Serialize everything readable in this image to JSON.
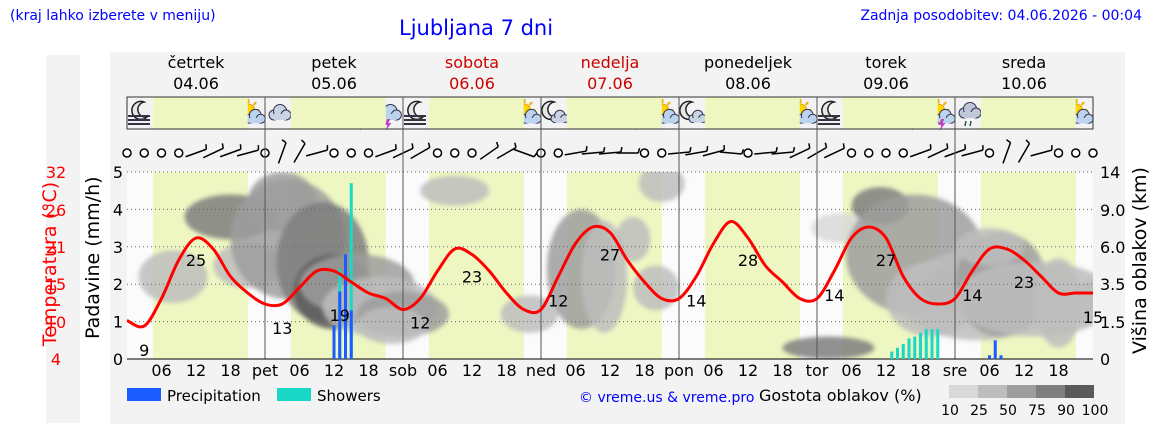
{
  "header": {
    "note": "(kraj lahko izberete v meniju)",
    "title": "Ljubljana 7 dni",
    "updated": "Zadnja posodobitev: 04.06.2026 - 00:04"
  },
  "days": [
    {
      "name": "četrtek",
      "date": "04.06",
      "weekend": false,
      "abbr": ""
    },
    {
      "name": "petek",
      "date": "05.06",
      "weekend": false,
      "abbr": "pet"
    },
    {
      "name": "sobota",
      "date": "06.06",
      "weekend": true,
      "abbr": "sob"
    },
    {
      "name": "nedelja",
      "date": "07.06",
      "weekend": true,
      "abbr": "ned"
    },
    {
      "name": "ponedeljek",
      "date": "08.06",
      "weekend": false,
      "abbr": "pon"
    },
    {
      "name": "torek",
      "date": "09.06",
      "weekend": false,
      "abbr": "tor"
    },
    {
      "name": "sreda",
      "date": "10.06",
      "weekend": false,
      "abbr": "sre"
    }
  ],
  "hour_ticks": [
    "06",
    "12",
    "18"
  ],
  "axes": {
    "left_outer_label": "Temperatura (°C)",
    "left_outer_ticks": [
      "32",
      "26",
      "21",
      "15",
      "10",
      "4"
    ],
    "left_inner_label": "Padavine (mm/h)",
    "left_inner_ticks": [
      "0",
      "1",
      "2",
      "3",
      "4",
      "5"
    ],
    "right_label": "Višina oblakov (km)",
    "right_ticks": [
      "0",
      "1.5",
      "3.5",
      "6.0",
      "9.0",
      "14"
    ]
  },
  "legend": {
    "precipitation": "Precipitation",
    "showers": "Showers",
    "credit": "© vreme.us & vreme.pro",
    "cloud_title": "Gostota oblakov (%)",
    "cloud_scale": [
      "10",
      "25",
      "50",
      "75",
      "90",
      "100"
    ]
  },
  "colors": {
    "temperature": "#ff0000",
    "precipitation": "#1a5cff",
    "showers": "#19d9c6",
    "daylight": "#eef7c2",
    "weekend_text": "#cc0000",
    "header_text": "#0000ff"
  },
  "icons": [
    "moon-fog",
    "moon-fog",
    "cloud",
    "sun",
    "sun-cloud",
    "cloud",
    "moon-cloud",
    "cloud-rain",
    "sun-storm",
    "cloud-storm",
    "moon-fog",
    "moon-cloud",
    "sun-cloud",
    "sun-cloud",
    "sun-cloud",
    "moon-cloud",
    "moon-cloud",
    "sun-cloud",
    "sun-storm",
    "sun-cloud",
    "moon-cloud",
    "cloud",
    "sun",
    "sun",
    "sun-cloud",
    "moon-fog",
    "moon-cloud",
    "sun-cloud",
    "sun-storm",
    "sun-storm",
    "cloud-rain",
    "cloud-rain",
    "sun-cloud",
    "sun-cloud",
    "sun-cloud"
  ],
  "chart_data": {
    "type": "line",
    "temperature_series": {
      "x_hours": [
        0,
        3,
        6,
        9,
        12,
        15,
        18,
        21,
        24,
        27,
        30,
        33,
        36,
        39,
        42,
        45,
        48,
        51,
        54,
        57,
        60,
        63,
        66,
        69,
        72,
        75,
        78,
        81,
        84,
        87,
        90,
        93,
        96,
        99,
        102,
        105,
        108,
        111,
        114,
        117,
        120,
        123,
        126,
        129,
        132,
        135,
        138,
        141,
        144,
        147,
        150,
        153,
        156,
        159,
        162,
        165,
        168
      ],
      "values": [
        10,
        9,
        14,
        21,
        25,
        23,
        18,
        15,
        13,
        13,
        16,
        19,
        19,
        17,
        15,
        14,
        12,
        14,
        19,
        23,
        22,
        19,
        15,
        12,
        12,
        18,
        24,
        27,
        26,
        21,
        17,
        14,
        14,
        18,
        24,
        28,
        25,
        20,
        17,
        14,
        14,
        19,
        25,
        27,
        25,
        18,
        14,
        13,
        14,
        19,
        23,
        23,
        21,
        18,
        15,
        15,
        15
      ],
      "labels": [
        {
          "hour": 3,
          "value": "9"
        },
        {
          "hour": 12,
          "value": "25"
        },
        {
          "hour": 27,
          "value": "13"
        },
        {
          "hour": 37,
          "value": "19"
        },
        {
          "hour": 51,
          "value": "12"
        },
        {
          "hour": 60,
          "value": "23"
        },
        {
          "hour": 75,
          "value": "12"
        },
        {
          "hour": 84,
          "value": "27"
        },
        {
          "hour": 99,
          "value": "14"
        },
        {
          "hour": 108,
          "value": "28"
        },
        {
          "hour": 123,
          "value": "14"
        },
        {
          "hour": 132,
          "value": "27"
        },
        {
          "hour": 147,
          "value": "14"
        },
        {
          "hour": 156,
          "value": "23"
        },
        {
          "hour": 168,
          "value": "15"
        }
      ]
    },
    "precipitation_series": [
      {
        "hour": 36,
        "value": 0.9
      },
      {
        "hour": 37,
        "value": 1.8
      },
      {
        "hour": 38,
        "value": 2.8
      },
      {
        "hour": 39,
        "value": 1.3
      },
      {
        "hour": 150,
        "value": 0.1
      },
      {
        "hour": 151,
        "value": 0.5
      },
      {
        "hour": 152,
        "value": 0.1
      }
    ],
    "showers_series": [
      {
        "hour": 37,
        "value": 2.4
      },
      {
        "hour": 38,
        "value": 2.7
      },
      {
        "hour": 39,
        "value": 4.7
      },
      {
        "hour": 133,
        "value": 0.2
      },
      {
        "hour": 134,
        "value": 0.3
      },
      {
        "hour": 135,
        "value": 0.4
      },
      {
        "hour": 136,
        "value": 0.55
      },
      {
        "hour": 137,
        "value": 0.6
      },
      {
        "hour": 138,
        "value": 0.7
      },
      {
        "hour": 139,
        "value": 0.8
      },
      {
        "hour": 140,
        "value": 0.8
      },
      {
        "hour": 141,
        "value": 0.8
      }
    ],
    "x_unit": "hours from 04.06 00:00",
    "temperature_range": [
      4,
      37
    ],
    "precipitation_range": [
      0,
      5
    ]
  }
}
